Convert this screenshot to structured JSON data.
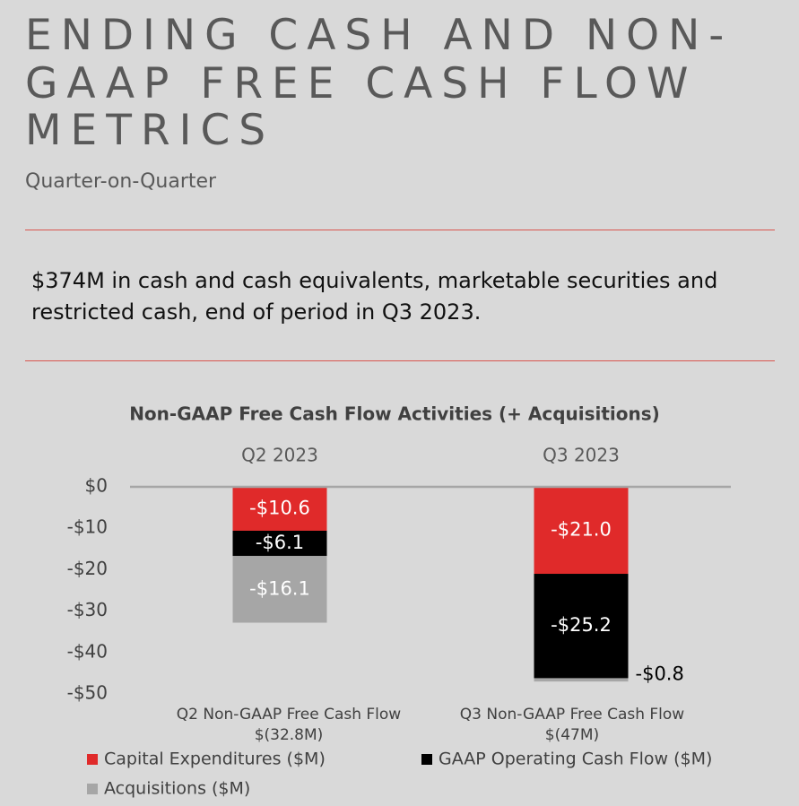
{
  "header": {
    "title_lines": [
      "ENDING CASH AND NON-",
      "GAAP FREE CASH FLOW",
      "METRICS"
    ],
    "subtitle": "Quarter-on-Quarter"
  },
  "statement": "$374M in cash and cash equivalents, marketable securities and restricted cash, end of period in Q3 2023.",
  "chart_data": {
    "type": "stacked_bar",
    "title": "Non-GAAP Free Cash Flow Activities (+ Acquisitions)",
    "categories": [
      "Q2 2023",
      "Q3 2023"
    ],
    "category_footers": [
      [
        "Q2 Non-GAAP Free Cash Flow",
        "$(32.8M)"
      ],
      [
        "Q3 Non-GAAP Free Cash Flow",
        "$(47M)"
      ]
    ],
    "series": [
      {
        "name": "Capital Expenditures ($M)",
        "color": "#e02a2a",
        "values": [
          -10.6,
          -21.0
        ],
        "value_labels": [
          "-$10.6",
          "-$21.0"
        ]
      },
      {
        "name": "GAAP Operating Cash Flow ($M)",
        "color": "#000000",
        "values": [
          -6.1,
          -25.2
        ],
        "value_labels": [
          "-$6.1",
          "-$25.2"
        ]
      },
      {
        "name": "Acquisitions ($M)",
        "color": "#a6a6a6",
        "values": [
          -16.1,
          -0.8
        ],
        "value_labels": [
          "-$16.1",
          "-$0.8"
        ]
      }
    ],
    "ylim": [
      -50,
      0
    ],
    "yticks": [
      {
        "value": 0,
        "label": "$0"
      },
      {
        "value": -10,
        "label": "-$10"
      },
      {
        "value": -20,
        "label": "-$20"
      },
      {
        "value": -30,
        "label": "-$30"
      },
      {
        "value": -40,
        "label": "-$40"
      },
      {
        "value": -50,
        "label": "-$50"
      }
    ]
  }
}
